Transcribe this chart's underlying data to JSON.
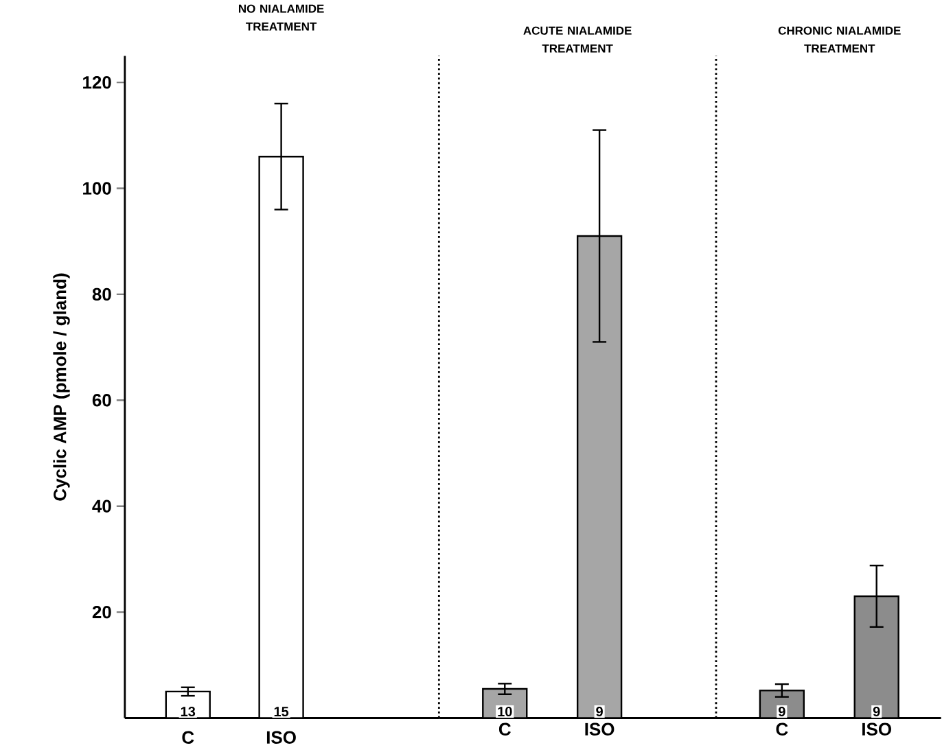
{
  "chart_data": [
    {
      "type": "bar",
      "title": "NO NIALAMIDE TREATMENT",
      "ylabel": "Cyclic AMP (pmole / gland)",
      "categories": [
        "C",
        "ISO"
      ],
      "values": [
        5,
        106
      ],
      "errors": [
        0.8,
        10
      ],
      "color": "#ffffff",
      "ylim": [
        0,
        125
      ],
      "yticks": [
        20,
        40,
        60,
        80,
        100,
        120
      ],
      "annotations": [
        "13",
        "15"
      ]
    },
    {
      "type": "bar",
      "title": "ACUTE NIALAMIDE TREATMENT",
      "categories": [
        "C",
        "ISO"
      ],
      "values": [
        5.5,
        91
      ],
      "errors": [
        1,
        20
      ],
      "color": "#a6a6a6",
      "ylim": [
        0,
        125
      ],
      "tick_labels": "x",
      "annotations": [
        "10",
        "9"
      ]
    },
    {
      "type": "bar",
      "title": "CHRONIC NIALAMIDE TREATMENT",
      "categories": [
        "C",
        "ISO"
      ],
      "values": [
        5.2,
        23
      ],
      "errors": [
        1.2,
        5.8
      ],
      "color": "#8c8c8c",
      "ylim": [
        0,
        125
      ],
      "tick_labels": "x",
      "annotations": [
        "9",
        "9"
      ]
    }
  ]
}
